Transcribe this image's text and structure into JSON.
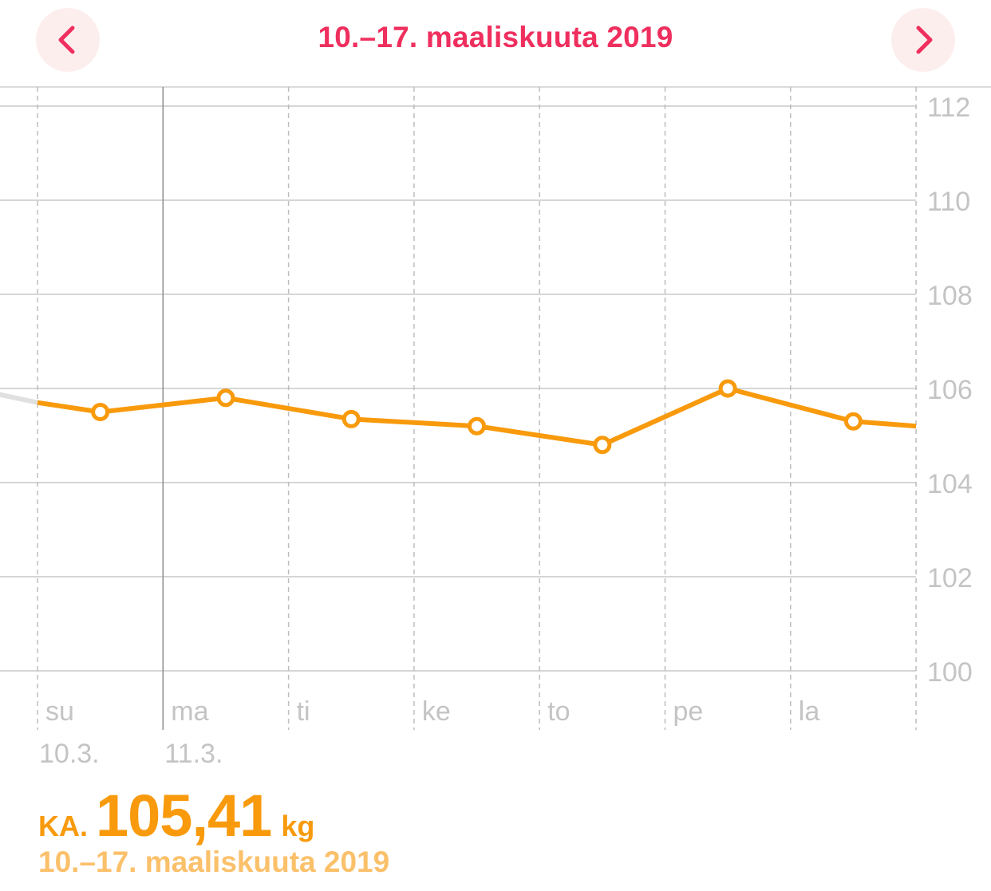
{
  "header": {
    "title": "10.–17. maaliskuuta 2019",
    "prev_icon": "chevron-left-icon",
    "next_icon": "chevron-right-icon"
  },
  "colors": {
    "accent": "#ef2f5e",
    "line": "#f89a0c",
    "grid": "#c8c8c8",
    "axis_text": "#c4c4c4"
  },
  "chart_data": {
    "type": "line",
    "days": [
      "su",
      "ma",
      "ti",
      "ke",
      "to",
      "pe",
      "la"
    ],
    "dates": [
      "10.3.",
      "11.3."
    ],
    "y_ticks": [
      "112",
      "110",
      "108",
      "106",
      "104",
      "102",
      "100"
    ],
    "ylim": [
      100,
      112
    ],
    "series": [
      {
        "points": [
          105.5,
          105.8,
          105.35,
          105.2,
          104.8,
          106.0,
          105.3
        ]
      }
    ],
    "start_value": 105.7,
    "end_value": 105.2,
    "grid": true
  },
  "summary": {
    "avg_label": "KA.",
    "avg_value": "105,41",
    "unit": "kg",
    "date_range": "10.–17. maaliskuuta 2019"
  }
}
